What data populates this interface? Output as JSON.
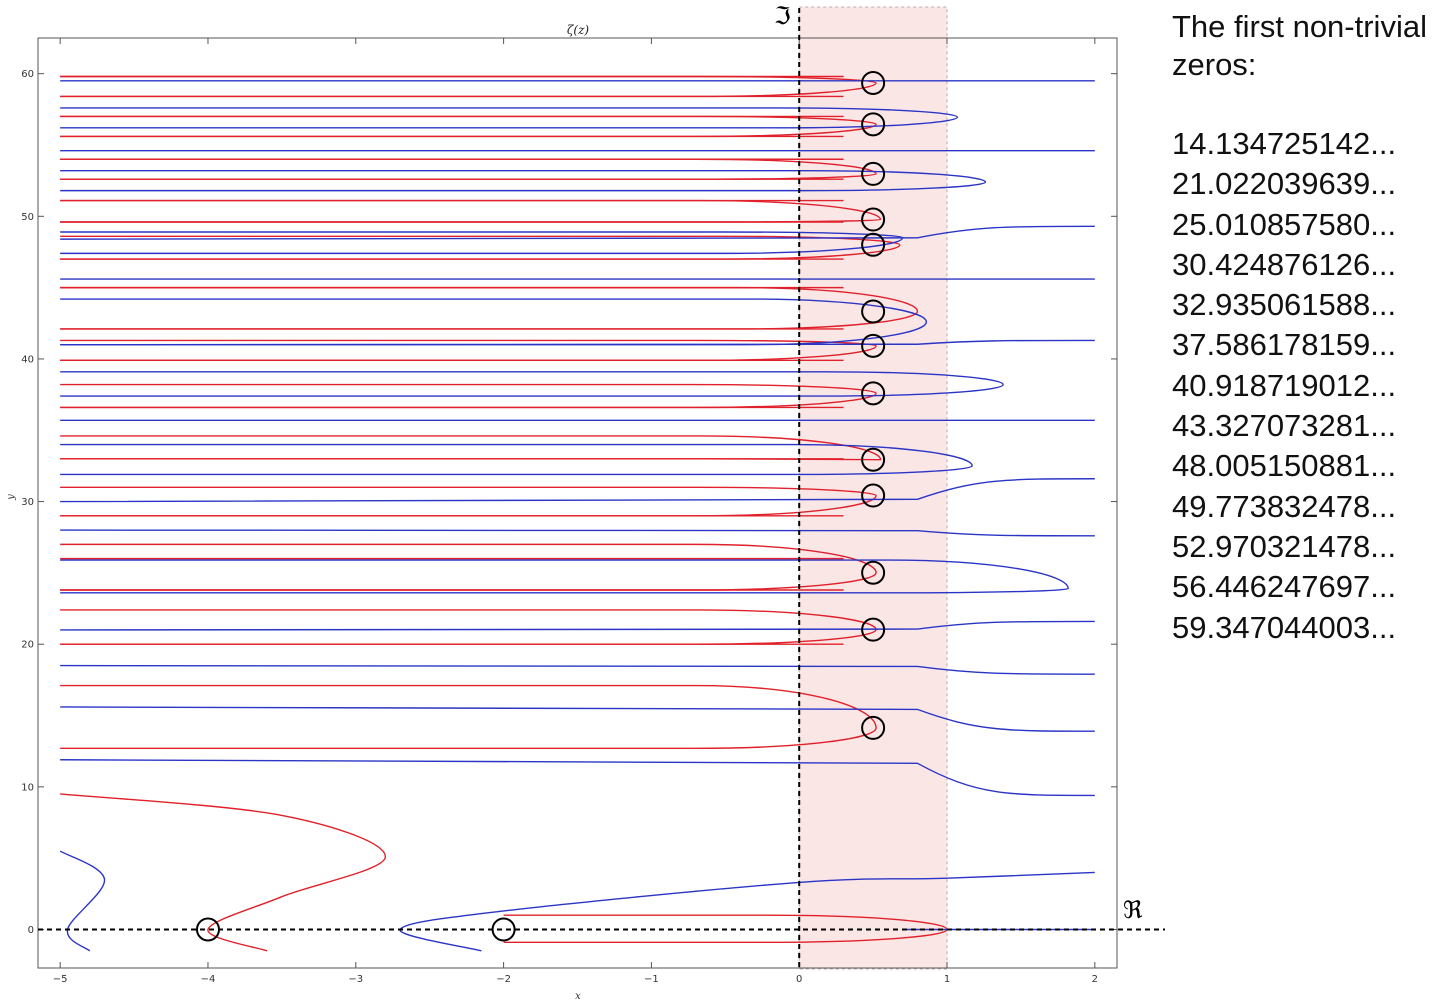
{
  "chart_data": {
    "type": "line",
    "title": "ζ(z)",
    "xlabel": "x",
    "ylabel": "y",
    "xlim": [
      -5.15,
      2.15
    ],
    "ylim": [
      -2.7,
      62.5
    ],
    "x_ticks": [
      -5,
      -4,
      -3,
      -2,
      -1,
      0,
      1,
      2
    ],
    "y_ticks": [
      0,
      10,
      20,
      30,
      40,
      50,
      60
    ],
    "real_axis_symbol": "ℜ",
    "imag_axis_symbol": "ℑ",
    "critical_strip": {
      "x_min": 0,
      "x_max": 1,
      "color": "#fbe6e6"
    },
    "series": [
      {
        "color": "#e0202a",
        "description_key": "re_zero_contours"
      },
      {
        "color": "#2a35c6",
        "description_key": "im_zero_contours"
      }
    ],
    "red_curves": [
      {
        "kind": "hline",
        "y": 59.8,
        "x_end": 0.3
      },
      {
        "kind": "hline",
        "y": 58.4,
        "x_end": 0.3
      },
      {
        "kind": "hline",
        "y": 57.0,
        "x_end": 0.3
      },
      {
        "kind": "hline",
        "y": 55.6,
        "x_end": 0.3
      },
      {
        "kind": "hline",
        "y": 54.0,
        "x_end": 0.3
      },
      {
        "kind": "hline",
        "y": 52.6,
        "x_end": 0.3
      },
      {
        "kind": "hline",
        "y": 51.1,
        "x_end": 0.3
      },
      {
        "kind": "hline",
        "y": 49.6,
        "x_end": 0.3
      },
      {
        "kind": "hline",
        "y": 47.0,
        "x_end": 0.3
      },
      {
        "kind": "hline",
        "y": 45.0,
        "x_end": 0.3
      },
      {
        "kind": "hline",
        "y": 42.1,
        "x_end": 0.3
      },
      {
        "kind": "hline",
        "y": 39.9,
        "x_end": 0.3
      },
      {
        "kind": "hline",
        "y": 36.6,
        "x_end": 0.3
      },
      {
        "kind": "hline",
        "y": 33.0,
        "x_end": 0.3
      },
      {
        "kind": "hline",
        "y": 29.0,
        "x_end": 0.3
      },
      {
        "kind": "hline",
        "y": 26.0,
        "x_end": 0.3
      },
      {
        "kind": "hline",
        "y": 23.8,
        "x_end": 0.3
      },
      {
        "kind": "hline",
        "y": 20.0,
        "x_end": 0.3
      },
      {
        "kind": "loop",
        "tip": [
          0.52,
          59.35
        ],
        "y_top": 59.8,
        "y_bot": 58.4
      },
      {
        "kind": "loop",
        "tip": [
          0.52,
          56.45
        ],
        "y_top": 57.0,
        "y_bot": 55.6
      },
      {
        "kind": "loop",
        "tip": [
          0.52,
          52.97
        ],
        "y_top": 54.0,
        "y_bot": 52.6
      },
      {
        "kind": "loop",
        "tip": [
          0.55,
          49.77
        ],
        "y_top": 51.1,
        "y_bot": 49.6
      },
      {
        "kind": "loop",
        "tip": [
          0.68,
          48.0
        ],
        "y_top": 48.6,
        "y_bot": 47.0
      },
      {
        "kind": "loop",
        "tip": [
          0.8,
          43.33
        ],
        "y_top": 45.0,
        "y_bot": 42.1
      },
      {
        "kind": "loop",
        "tip": [
          0.52,
          40.92
        ],
        "y_top": 41.3,
        "y_bot": 39.9
      },
      {
        "kind": "loop",
        "tip": [
          0.52,
          37.59
        ],
        "y_top": 38.2,
        "y_bot": 36.6
      },
      {
        "kind": "loop",
        "tip": [
          0.55,
          32.94
        ],
        "y_top": 34.6,
        "y_bot": 33.0
      },
      {
        "kind": "loop",
        "tip": [
          0.52,
          30.42
        ],
        "y_top": 31.0,
        "y_bot": 29.0
      },
      {
        "kind": "loop",
        "tip": [
          0.52,
          25.01
        ],
        "y_top": 27.0,
        "y_bot": 23.8
      },
      {
        "kind": "loop",
        "tip": [
          0.52,
          21.02
        ],
        "y_top": 22.4,
        "y_bot": 20.0
      },
      {
        "kind": "loop",
        "tip": [
          0.52,
          14.13
        ],
        "y_top": 17.1,
        "y_bot": 12.7
      },
      {
        "kind": "loop",
        "tip": [
          1.0,
          0.0
        ],
        "y_top": 1.0,
        "y_bot": -0.9,
        "x_start": -2.0
      },
      {
        "kind": "path",
        "points": [
          [
            -5,
            9.5
          ],
          [
            -3.5,
            8.0
          ],
          [
            -2.8,
            5.1
          ],
          [
            -3.5,
            2.3
          ],
          [
            -4.0,
            0.0
          ],
          [
            -3.6,
            -1.5
          ]
        ]
      }
    ],
    "blue_curves": [
      {
        "kind": "hline",
        "y": 59.5,
        "x_end": 2.0,
        "bend_at": 0.5
      },
      {
        "kind": "hline",
        "y": 54.6,
        "x_end": 2.0
      },
      {
        "kind": "hline",
        "y": 48.4,
        "x_end": 2.0,
        "bend_to": 49.3
      },
      {
        "kind": "hline",
        "y": 45.6,
        "x_end": 2.0
      },
      {
        "kind": "hline",
        "y": 41.0,
        "x_end": 2.0,
        "bend_to": 41.3
      },
      {
        "kind": "hline",
        "y": 35.7,
        "x_end": 2.0
      },
      {
        "kind": "hline",
        "y": 30.0,
        "x_end": 2.0,
        "bend_to": 31.6
      },
      {
        "kind": "hline",
        "y": 28.0,
        "x_end": 2.0,
        "bend_to": 27.6
      },
      {
        "kind": "hline",
        "y": 21.0,
        "x_end": 2.0,
        "bend_to": 21.6
      },
      {
        "kind": "hline",
        "y": 18.5,
        "x_end": 2.0,
        "bend_to": 17.9
      },
      {
        "kind": "hline",
        "y": 15.6,
        "x_end": 2.0,
        "bend_to": 13.9
      },
      {
        "kind": "hline",
        "y": 11.9,
        "x_end": 2.0,
        "bend_to": 9.4
      },
      {
        "kind": "loop",
        "tip": [
          1.07,
          56.95
        ],
        "y_top": 57.6,
        "y_bot": 56.2
      },
      {
        "kind": "loop",
        "tip": [
          1.26,
          52.4
        ],
        "y_top": 53.2,
        "y_bot": 51.8
      },
      {
        "kind": "loop",
        "tip": [
          0.7,
          48.5
        ],
        "y_top": 48.9,
        "y_bot": 47.4
      },
      {
        "kind": "loop",
        "tip": [
          0.86,
          42.6
        ],
        "y_top": 44.2,
        "y_bot": 41.0
      },
      {
        "kind": "loop",
        "tip": [
          1.38,
          38.2
        ],
        "y_top": 39.1,
        "y_bot": 37.4
      },
      {
        "kind": "loop",
        "tip": [
          1.17,
          32.5
        ],
        "y_top": 34.0,
        "y_bot": 31.9
      },
      {
        "kind": "loop",
        "tip": [
          1.82,
          23.9
        ],
        "y_top": 25.9,
        "y_bot": 23.6
      },
      {
        "kind": "path",
        "points": [
          [
            -2.15,
            -1.5
          ],
          [
            -2.7,
            0.0
          ],
          [
            -2.0,
            1.3
          ],
          [
            0.0,
            3.3
          ],
          [
            1.0,
            3.6
          ],
          [
            2.0,
            4.0
          ]
        ]
      },
      {
        "kind": "path",
        "points": [
          [
            -5,
            5.5
          ],
          [
            -4.7,
            3.5
          ],
          [
            -4.95,
            0.0
          ],
          [
            -4.8,
            -1.5
          ]
        ]
      },
      {
        "kind": "hline",
        "y": 0.0,
        "x_start": 0.7,
        "x_end": 2.0
      }
    ],
    "circles": [
      {
        "x": -4,
        "y": 0
      },
      {
        "x": -2,
        "y": 0
      },
      {
        "x": 0.5,
        "y": 14.134725142
      },
      {
        "x": 0.5,
        "y": 21.022039639
      },
      {
        "x": 0.5,
        "y": 25.01085758
      },
      {
        "x": 0.5,
        "y": 30.424876126
      },
      {
        "x": 0.5,
        "y": 32.935061588
      },
      {
        "x": 0.5,
        "y": 37.586178159
      },
      {
        "x": 0.5,
        "y": 40.918719012
      },
      {
        "x": 0.5,
        "y": 43.327073281
      },
      {
        "x": 0.5,
        "y": 48.005150881
      },
      {
        "x": 0.5,
        "y": 49.773832478
      },
      {
        "x": 0.5,
        "y": 52.970321478
      },
      {
        "x": 0.5,
        "y": 56.446247697
      },
      {
        "x": 0.5,
        "y": 59.347044003
      }
    ]
  },
  "zeros_panel": {
    "heading": "The first non-trivial zeros:",
    "values": [
      "14.134725142...",
      "21.022039639...",
      "25.010857580...",
      "30.424876126...",
      "32.935061588...",
      "37.586178159...",
      "40.918719012...",
      "43.327073281...",
      "48.005150881...",
      "49.773832478...",
      "52.970321478...",
      "56.446247697...",
      "59.347044003..."
    ]
  }
}
